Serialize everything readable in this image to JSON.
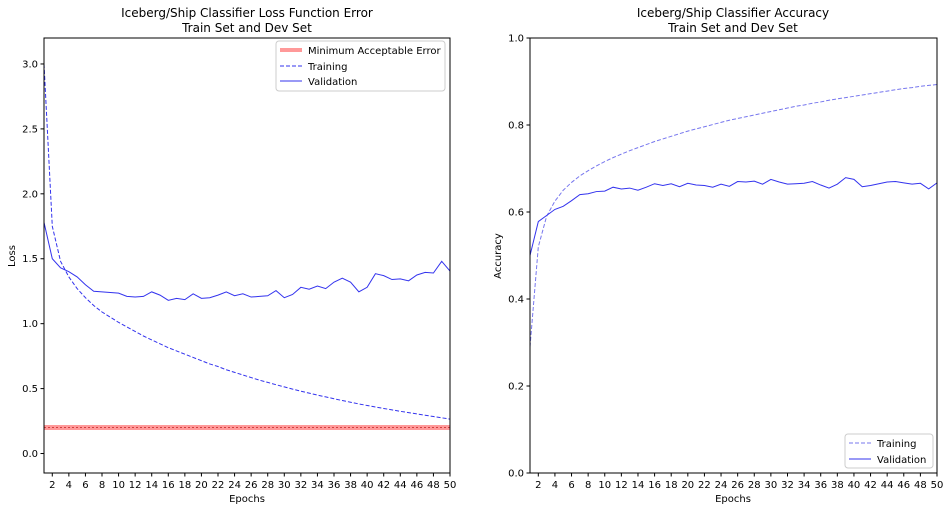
{
  "chart_data": [
    {
      "type": "line",
      "title_line1": "Iceberg/Ship Classifier Loss Function Error",
      "title_line2": "Train Set and Dev Set",
      "xlabel": "Epochs",
      "ylabel": "Loss",
      "xlim": [
        1,
        50
      ],
      "ylim": [
        -0.15,
        3.2
      ],
      "x_ticks": [
        2,
        4,
        6,
        8,
        10,
        12,
        14,
        16,
        18,
        20,
        22,
        24,
        26,
        28,
        30,
        32,
        34,
        36,
        38,
        40,
        42,
        44,
        46,
        48,
        50
      ],
      "y_ticks": [
        0.0,
        0.5,
        1.0,
        1.5,
        2.0,
        2.5,
        3.0
      ],
      "y_tick_labels": [
        "0.0",
        "0.5",
        "1.0",
        "1.5",
        "2.0",
        "2.5",
        "3.0"
      ],
      "grid": false,
      "legend": "top-right",
      "legend_entries": [
        "Minimum Acceptable Error",
        "Training",
        "Validation"
      ],
      "reference_line": {
        "name": "Minimum Acceptable Error",
        "value": 0.2,
        "color": "#ff9999"
      },
      "x": [
        1,
        2,
        3,
        4,
        5,
        6,
        7,
        8,
        9,
        10,
        11,
        12,
        13,
        14,
        15,
        16,
        17,
        18,
        19,
        20,
        21,
        22,
        23,
        24,
        25,
        26,
        27,
        28,
        29,
        30,
        31,
        32,
        33,
        34,
        35,
        36,
        37,
        38,
        39,
        40,
        41,
        42,
        43,
        44,
        45,
        46,
        47,
        48,
        49,
        50
      ],
      "series": [
        {
          "name": "Training",
          "style": "dashed",
          "color": "#3333ee",
          "values": [
            3.0,
            1.75,
            1.48,
            1.36,
            1.27,
            1.2,
            1.14,
            1.09,
            1.05,
            1.01,
            0.975,
            0.94,
            0.905,
            0.875,
            0.845,
            0.815,
            0.79,
            0.765,
            0.74,
            0.715,
            0.69,
            0.67,
            0.645,
            0.625,
            0.605,
            0.585,
            0.565,
            0.548,
            0.53,
            0.513,
            0.496,
            0.48,
            0.465,
            0.45,
            0.436,
            0.422,
            0.408,
            0.395,
            0.382,
            0.37,
            0.358,
            0.347,
            0.336,
            0.325,
            0.315,
            0.305,
            0.295,
            0.285,
            0.275,
            0.265
          ]
        },
        {
          "name": "Validation",
          "style": "solid",
          "color": "#3333ee",
          "values": [
            1.78,
            1.5,
            1.43,
            1.4,
            1.36,
            1.3,
            1.25,
            1.245,
            1.24,
            1.235,
            1.21,
            1.205,
            1.21,
            1.245,
            1.22,
            1.18,
            1.195,
            1.185,
            1.23,
            1.195,
            1.2,
            1.22,
            1.245,
            1.215,
            1.23,
            1.205,
            1.21,
            1.215,
            1.255,
            1.2,
            1.225,
            1.28,
            1.265,
            1.29,
            1.27,
            1.32,
            1.35,
            1.32,
            1.245,
            1.28,
            1.385,
            1.37,
            1.34,
            1.345,
            1.33,
            1.375,
            1.395,
            1.39,
            1.48,
            1.405
          ]
        }
      ]
    },
    {
      "type": "line",
      "title_line1": "Iceberg/Ship Classifier Accuracy",
      "title_line2": "Train Set and Dev Set",
      "xlabel": "Epochs",
      "ylabel": "Accuracy",
      "xlim": [
        1,
        50
      ],
      "ylim": [
        0.0,
        1.0
      ],
      "x_ticks": [
        2,
        4,
        6,
        8,
        10,
        12,
        14,
        16,
        18,
        20,
        22,
        24,
        26,
        28,
        30,
        32,
        34,
        36,
        38,
        40,
        42,
        44,
        46,
        48,
        50
      ],
      "y_ticks": [
        0.0,
        0.2,
        0.4,
        0.6,
        0.8,
        1.0
      ],
      "y_tick_labels": [
        "0.0",
        "0.2",
        "0.4",
        "0.6",
        "0.8",
        "1.0"
      ],
      "grid": false,
      "legend": "bottom-right",
      "legend_entries": [
        "Training",
        "Validation"
      ],
      "x": [
        1,
        2,
        3,
        4,
        5,
        6,
        7,
        8,
        9,
        10,
        11,
        12,
        13,
        14,
        15,
        16,
        17,
        18,
        19,
        20,
        21,
        22,
        23,
        24,
        25,
        26,
        27,
        28,
        29,
        30,
        31,
        32,
        33,
        34,
        35,
        36,
        37,
        38,
        39,
        40,
        41,
        42,
        43,
        44,
        45,
        46,
        47,
        48,
        49,
        50
      ],
      "series": [
        {
          "name": "Training",
          "style": "dashed",
          "color": "#7777ee",
          "values": [
            0.29,
            0.52,
            0.59,
            0.625,
            0.65,
            0.668,
            0.683,
            0.695,
            0.706,
            0.716,
            0.725,
            0.733,
            0.741,
            0.748,
            0.755,
            0.762,
            0.768,
            0.774,
            0.78,
            0.786,
            0.791,
            0.796,
            0.801,
            0.806,
            0.811,
            0.815,
            0.819,
            0.823,
            0.827,
            0.831,
            0.835,
            0.839,
            0.843,
            0.846,
            0.85,
            0.853,
            0.857,
            0.86,
            0.863,
            0.866,
            0.869,
            0.872,
            0.875,
            0.878,
            0.881,
            0.884,
            0.886,
            0.889,
            0.891,
            0.893
          ]
        },
        {
          "name": "Validation",
          "style": "solid",
          "color": "#3333ee",
          "values": [
            0.5,
            0.578,
            0.592,
            0.606,
            0.613,
            0.626,
            0.64,
            0.642,
            0.647,
            0.648,
            0.657,
            0.653,
            0.655,
            0.65,
            0.657,
            0.665,
            0.661,
            0.665,
            0.658,
            0.666,
            0.662,
            0.661,
            0.657,
            0.664,
            0.659,
            0.67,
            0.669,
            0.671,
            0.664,
            0.675,
            0.669,
            0.664,
            0.665,
            0.666,
            0.67,
            0.662,
            0.655,
            0.664,
            0.679,
            0.675,
            0.658,
            0.661,
            0.665,
            0.669,
            0.67,
            0.667,
            0.664,
            0.666,
            0.653,
            0.667
          ]
        }
      ]
    }
  ]
}
